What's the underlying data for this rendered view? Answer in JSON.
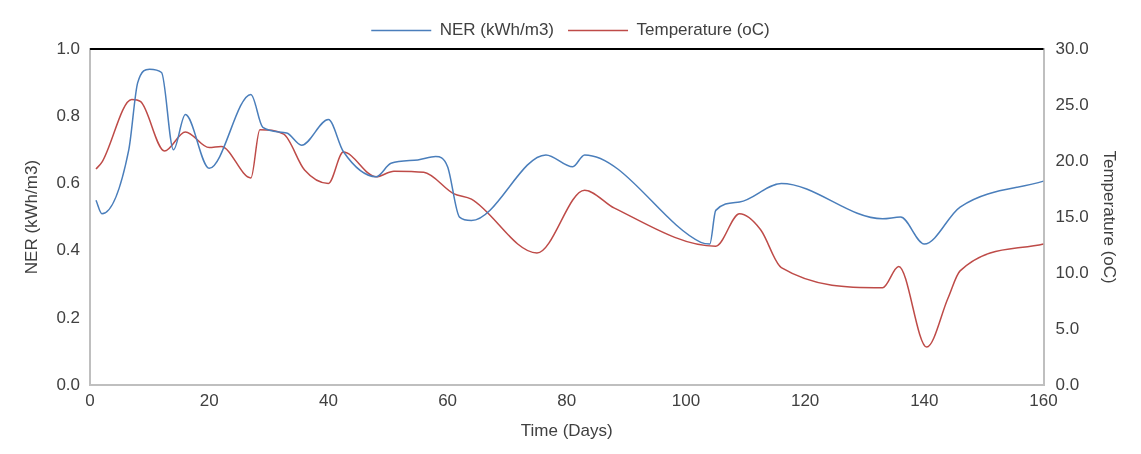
{
  "chart_data": {
    "type": "line",
    "xlabel": "Time (Days)",
    "ylabel": "NER (kWh/m3)",
    "y2label": "Temperature (oC)",
    "legend": "top",
    "grid": false,
    "marker": "none",
    "line_style": "solid",
    "xlim": [
      0,
      160
    ],
    "xticks": [
      0,
      20,
      40,
      60,
      80,
      100,
      120,
      140,
      160
    ],
    "ylim": [
      0,
      1
    ],
    "yticks": [
      {
        "value": 0,
        "label": "0.0"
      },
      {
        "value": 0.2,
        "label": "0.2"
      },
      {
        "value": 0.4,
        "label": "0.4"
      },
      {
        "value": 0.6,
        "label": "0.6"
      },
      {
        "value": 0.8,
        "label": "0.8"
      },
      {
        "value": 1,
        "label": "1.0"
      }
    ],
    "y2lim": [
      0,
      30
    ],
    "y2ticks": [
      {
        "value": 0,
        "label": "0.0"
      },
      {
        "value": 5,
        "label": "5.0"
      },
      {
        "value": 10,
        "label": "10.0"
      },
      {
        "value": 15,
        "label": "15.0"
      },
      {
        "value": 20,
        "label": "20.0"
      },
      {
        "value": 25,
        "label": "25.0"
      },
      {
        "value": 30,
        "label": "30.0"
      }
    ],
    "series": [
      {
        "name": "NER (kWh/m3)",
        "color": "#4a7ebb",
        "x": [
          1,
          2,
          6.5,
          8,
          10,
          12,
          14,
          16,
          20,
          27,
          29,
          33,
          35.5,
          40,
          42.5,
          48,
          50.5,
          55,
          58,
          60,
          62,
          64,
          76.5,
          81,
          83,
          102.5,
          104,
          105,
          109,
          116,
          133,
          136,
          140,
          146,
          160
        ],
        "values": [
          0.55,
          0.51,
          0.7,
          0.9,
          0.94,
          0.93,
          0.7,
          0.805,
          0.645,
          0.865,
          0.767,
          0.75,
          0.714,
          0.79,
          0.695,
          0.62,
          0.66,
          0.67,
          0.68,
          0.65,
          0.5,
          0.49,
          0.685,
          0.65,
          0.685,
          0.425,
          0.42,
          0.52,
          0.545,
          0.6,
          0.495,
          0.5,
          0.42,
          0.53,
          0.607
        ]
      },
      {
        "name": "Temperature (oC)",
        "color": "#be4b48",
        "axis": "y2",
        "x": [
          1,
          2,
          7,
          8.5,
          12.5,
          16,
          20,
          22,
          27,
          28.5,
          32.5,
          36,
          40,
          42.5,
          48,
          51,
          56,
          61,
          64,
          75,
          83,
          88,
          105,
          109,
          112.5,
          116,
          133,
          135.7,
          140.4,
          144,
          146,
          160
        ],
        "values": [
          19.3,
          19.9,
          25.5,
          25.3,
          20.9,
          22.6,
          21.2,
          21.3,
          18.5,
          22.8,
          22.4,
          19.2,
          18,
          20.8,
          18.6,
          19.1,
          19,
          17.1,
          16.6,
          11.8,
          17.4,
          15.8,
          12.4,
          15.3,
          13.9,
          10.5,
          8.7,
          10.6,
          3.4,
          7.8,
          10.2,
          12.6
        ]
      }
    ]
  }
}
